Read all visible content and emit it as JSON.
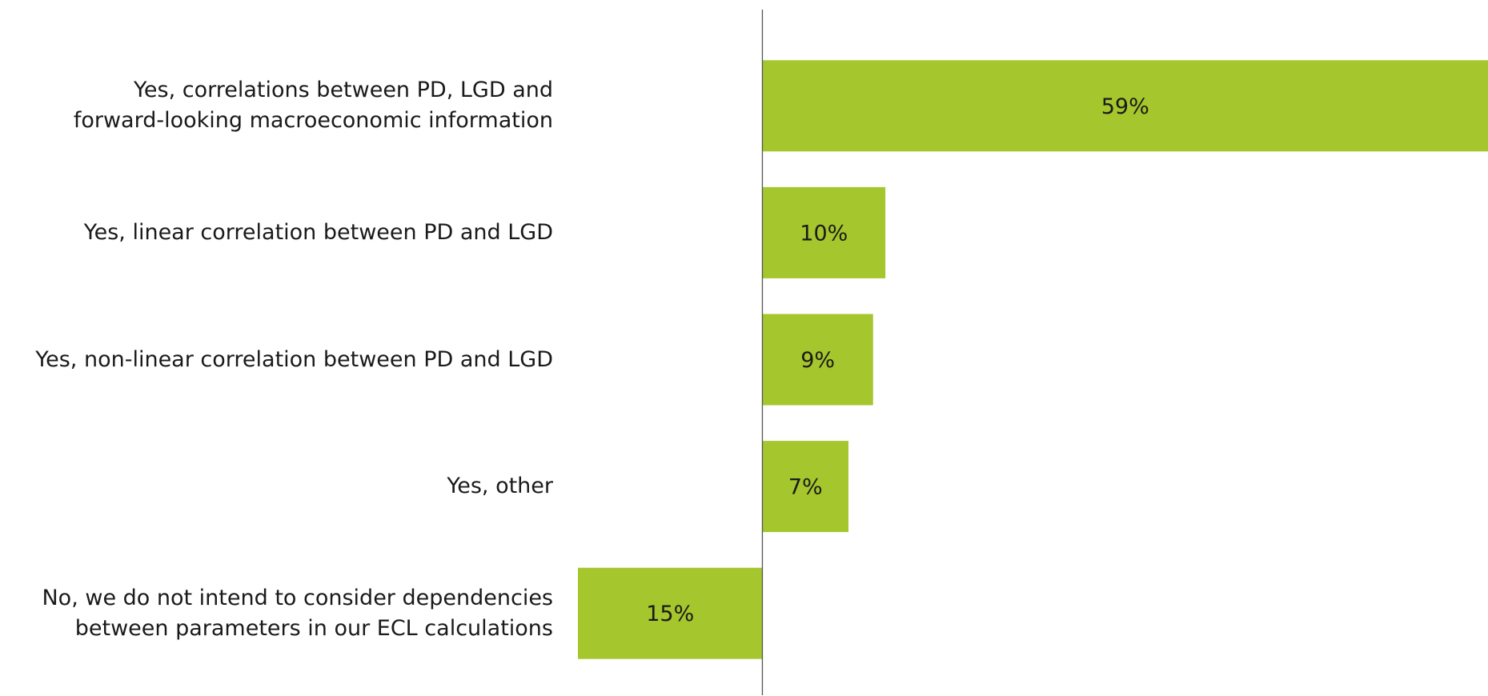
{
  "chart_data": {
    "type": "barh",
    "categories": [
      "Yes, correlations between PD, LGD and\nforward-looking macroeconomic information",
      "Yes, linear correlation between PD and LGD",
      "Yes, non-linear correlation between PD and LGD",
      "Yes, other",
      "No, we do not intend to consider dependencies\nbetween parameters in our ECL calculations"
    ],
    "values": [
      59,
      10,
      9,
      7,
      -15
    ],
    "value_labels": [
      "59%",
      "10%",
      "9%",
      "7%",
      "15%"
    ],
    "color": "#a5c62c",
    "xlim": [
      -15,
      59
    ]
  }
}
